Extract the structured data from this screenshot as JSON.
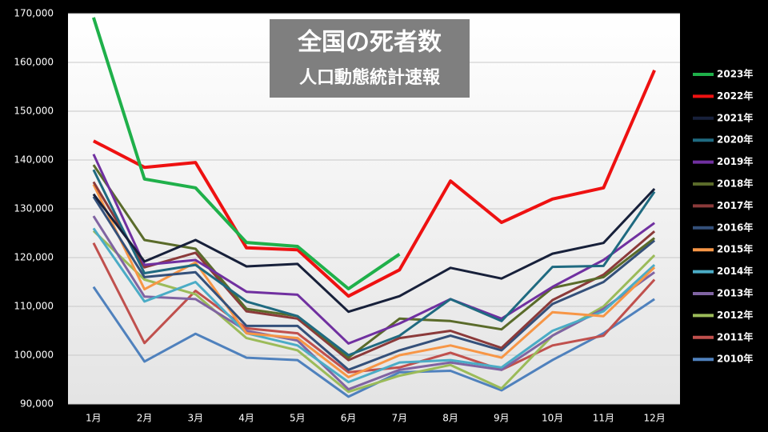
{
  "chart_data": {
    "type": "line",
    "title": "全国の死者数",
    "subtitle": "人口動態統計速報",
    "categories": [
      "1月",
      "2月",
      "3月",
      "4月",
      "5月",
      "6月",
      "7月",
      "8月",
      "9月",
      "10月",
      "11月",
      "12月"
    ],
    "ylim": [
      90000,
      170000
    ],
    "yticks": [
      {
        "value": 90000,
        "label": "90,000"
      },
      {
        "value": 100000,
        "label": "100,000"
      },
      {
        "value": 110000,
        "label": "110,000"
      },
      {
        "value": 120000,
        "label": "120,000"
      },
      {
        "value": 130000,
        "label": "130,000"
      },
      {
        "value": 140000,
        "label": "140,000"
      },
      {
        "value": 150000,
        "label": "150,000"
      },
      {
        "value": 160000,
        "label": "160,000"
      },
      {
        "value": 170000,
        "label": "170,000"
      }
    ],
    "grid": true,
    "legend": "right",
    "series": [
      {
        "name": "2023年",
        "color": "#1fb04a",
        "values": [
          169200,
          136100,
          134300,
          123100,
          122300,
          113600,
          120700,
          null,
          null,
          null,
          null,
          null
        ]
      },
      {
        "name": "2022年",
        "color": "#ee1111",
        "values": [
          143900,
          138500,
          139500,
          122000,
          121600,
          112100,
          117500,
          135700,
          127200,
          132000,
          134300,
          158400
        ]
      },
      {
        "name": "2021年",
        "color": "#17203a",
        "values": [
          133000,
          119200,
          123600,
          118200,
          118700,
          108900,
          112100,
          117900,
          115700,
          120800,
          123000,
          134100
        ]
      },
      {
        "name": "2020年",
        "color": "#1f6a80",
        "values": [
          138000,
          116800,
          118500,
          111000,
          108000,
          100000,
          104000,
          111500,
          107000,
          118100,
          118300,
          133500
        ]
      },
      {
        "name": "2019年",
        "color": "#7030a0",
        "values": [
          141200,
          118500,
          119500,
          113000,
          112400,
          102400,
          106500,
          111500,
          107500,
          114000,
          119500,
          127100
        ]
      },
      {
        "name": "2018年",
        "color": "#5a6b2a",
        "values": [
          139000,
          123600,
          121800,
          109500,
          108000,
          99500,
          107500,
          107000,
          105300,
          113800,
          116000,
          124000
        ]
      },
      {
        "name": "2017年",
        "color": "#8b3a3a",
        "values": [
          135500,
          118000,
          121000,
          109000,
          107500,
          99000,
          103500,
          105000,
          101500,
          111300,
          116500,
          125400
        ]
      },
      {
        "name": "2016年",
        "color": "#34507a",
        "values": [
          132500,
          116000,
          117000,
          106000,
          106000,
          97000,
          101000,
          104000,
          101000,
          110500,
          115000,
          123500
        ]
      },
      {
        "name": "2015年",
        "color": "#f79646",
        "values": [
          135000,
          113500,
          119000,
          104500,
          103500,
          95500,
          100000,
          102000,
          99500,
          108800,
          108000,
          118000
        ]
      },
      {
        "name": "2014年",
        "color": "#4bacc6",
        "values": [
          126000,
          111000,
          115000,
          104500,
          102000,
          94500,
          98500,
          99000,
          97500,
          105000,
          109000,
          118500
        ]
      },
      {
        "name": "2013年",
        "color": "#8064a2",
        "values": [
          128500,
          112000,
          111500,
          105000,
          103000,
          93000,
          97000,
          98500,
          97000,
          104000,
          109500,
          117000
        ]
      },
      {
        "name": "2012年",
        "color": "#9bbb59",
        "values": [
          125500,
          115500,
          112500,
          103500,
          101000,
          92500,
          95800,
          98000,
          93200,
          104000,
          110000,
          120500
        ]
      },
      {
        "name": "2011年",
        "color": "#c0504d",
        "values": [
          123000,
          102500,
          113200,
          105500,
          104500,
          96500,
          97500,
          100500,
          97000,
          102000,
          104000,
          115500
        ]
      },
      {
        "name": "2010年",
        "color": "#4f81bd",
        "values": [
          114000,
          98700,
          104400,
          99500,
          99000,
          91500,
          96500,
          96800,
          92800,
          99000,
          104500,
          111500
        ]
      }
    ]
  }
}
